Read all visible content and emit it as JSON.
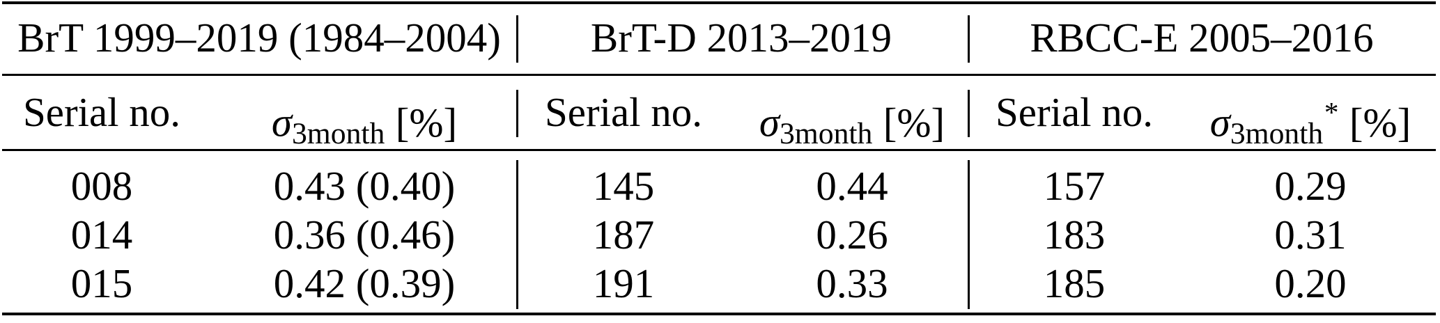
{
  "table": {
    "colors": {
      "background": "#ffffff",
      "text": "#000000",
      "rule": "#000000"
    },
    "groups": [
      {
        "title": "BrT 1999–2019 (1984–2004)",
        "serial_header": "Serial no.",
        "sigma_header": {
          "symbol": "σ",
          "subscript": "3month",
          "star": "",
          "unit": "[%]"
        },
        "rows": [
          {
            "serial": "008",
            "value": "0.43 (0.40)"
          },
          {
            "serial": "014",
            "value": "0.36 (0.46)"
          },
          {
            "serial": "015",
            "value": "0.42 (0.39)"
          }
        ]
      },
      {
        "title": "BrT-D 2013–2019",
        "serial_header": "Serial no.",
        "sigma_header": {
          "symbol": "σ",
          "subscript": "3month",
          "star": "",
          "unit": "[%]"
        },
        "rows": [
          {
            "serial": "145",
            "value": "0.44"
          },
          {
            "serial": "187",
            "value": "0.26"
          },
          {
            "serial": "191",
            "value": "0.33"
          }
        ]
      },
      {
        "title": "RBCC-E 2005–2016",
        "serial_header": "Serial no.",
        "sigma_header": {
          "symbol": "σ",
          "subscript": "3month",
          "star": "*",
          "unit": "[%]"
        },
        "rows": [
          {
            "serial": "157",
            "value": "0.29"
          },
          {
            "serial": "183",
            "value": "0.31"
          },
          {
            "serial": "185",
            "value": "0.20"
          }
        ]
      }
    ]
  }
}
